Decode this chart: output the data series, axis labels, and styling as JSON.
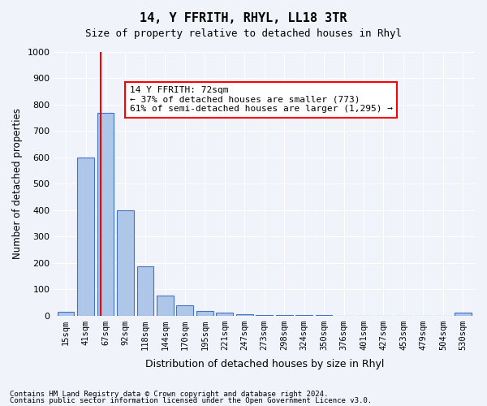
{
  "title": "14, Y FFRITH, RHYL, LL18 3TR",
  "subtitle": "Size of property relative to detached houses in Rhyl",
  "xlabel": "Distribution of detached houses by size in Rhyl",
  "ylabel": "Number of detached properties",
  "bar_labels": [
    "15sqm",
    "41sqm",
    "67sqm",
    "92sqm",
    "118sqm",
    "144sqm",
    "170sqm",
    "195sqm",
    "221sqm",
    "247sqm",
    "273sqm",
    "298sqm",
    "324sqm",
    "350sqm",
    "376sqm",
    "401sqm",
    "427sqm",
    "453sqm",
    "479sqm",
    "504sqm",
    "530sqm"
  ],
  "bar_values": [
    15,
    600,
    770,
    400,
    185,
    75,
    40,
    18,
    10,
    5,
    3,
    2,
    1,
    1,
    0,
    0,
    0,
    0,
    0,
    0,
    10
  ],
  "bar_color": "#aec6e8",
  "bar_edge_color": "#4472c4",
  "ylim": [
    0,
    1000
  ],
  "yticks": [
    0,
    100,
    200,
    300,
    400,
    500,
    600,
    700,
    800,
    900,
    1000
  ],
  "vline_x": 2,
  "vline_color": "red",
  "annotation_text": "14 Y FFRITH: 72sqm\n← 37% of detached houses are smaller (773)\n61% of semi-detached houses are larger (1,295) →",
  "annotation_box_color": "white",
  "annotation_box_edge": "red",
  "footer_line1": "Contains HM Land Registry data © Crown copyright and database right 2024.",
  "footer_line2": "Contains public sector information licensed under the Open Government Licence v3.0.",
  "background_color": "#f0f4fa",
  "grid_color": "white"
}
